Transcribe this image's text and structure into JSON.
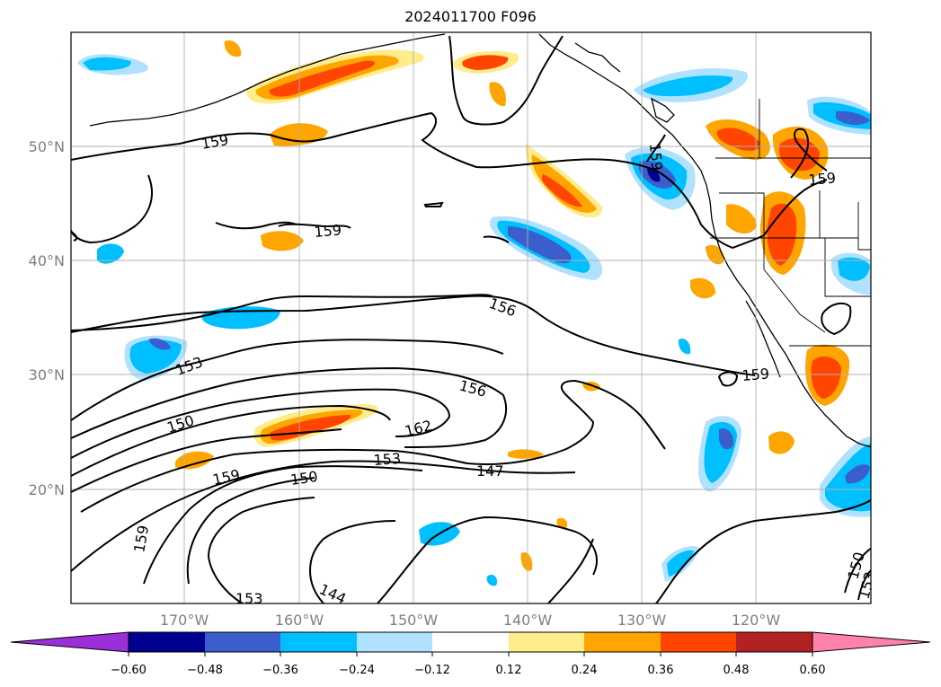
{
  "title": "2024011700 F096",
  "map": {
    "lat_labels": [
      "50°N",
      "40°N",
      "30°N",
      "20°N"
    ],
    "lon_labels": [
      "170°W",
      "160°W",
      "150°W",
      "140°W",
      "130°W",
      "120°W"
    ],
    "contour_labels": [
      "159",
      "159",
      "159",
      "159",
      "156",
      "153",
      "150",
      "159",
      "150",
      "153",
      "162",
      "156",
      "147",
      "159",
      "153",
      "144",
      "159",
      "150",
      "153"
    ]
  },
  "colorbar": {
    "colors": [
      "#9b30d9",
      "#000090",
      "#3a5fcd",
      "#00bfff",
      "#b0e2ff",
      "#ffffff",
      "#ffec8b",
      "#ffa500",
      "#ff4500",
      "#b22222",
      "#ff82ab"
    ],
    "tick_labels": [
      "−0.60",
      "−0.48",
      "−0.36",
      "−0.24",
      "−0.12",
      "0.12",
      "0.24",
      "0.36",
      "0.48",
      "0.60"
    ]
  }
}
